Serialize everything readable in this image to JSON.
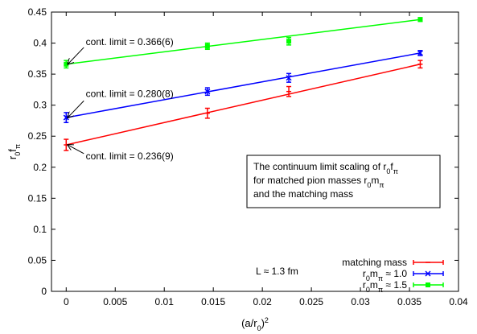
{
  "chart_data": {
    "type": "scatter",
    "xlabel_base": "(a/r",
    "xlabel_sub": "0",
    "xlabel_close": ")",
    "xlabel_sup": "2",
    "ylabel_base": "r",
    "ylabel_sub1": "0",
    "ylabel_mid": "f",
    "ylabel_sub2": "π",
    "xlim": [
      -0.0015,
      0.04
    ],
    "ylim": [
      0,
      0.45
    ],
    "x_ticks": [
      0,
      0.005,
      0.01,
      0.015,
      0.02,
      0.025,
      0.03,
      0.035,
      0.04
    ],
    "x_tick_labels": [
      "0",
      "0.005",
      "0.01",
      "0.015",
      "0.02",
      "0.025",
      "0.03",
      "0.035",
      "0.04"
    ],
    "y_ticks": [
      0,
      0.05,
      0.1,
      0.15,
      0.2,
      0.25,
      0.3,
      0.35,
      0.4,
      0.45
    ],
    "y_tick_labels": [
      "0",
      "0.05",
      "0.1",
      "0.15",
      "0.2",
      "0.25",
      "0.3",
      "0.35",
      "0.4",
      "0.45"
    ],
    "grid": false,
    "legend_position": "bottom-right",
    "series": [
      {
        "legend_base": "matching mass",
        "legend_sub": "",
        "legend_tail": "",
        "color": "#ff0000",
        "marker": "plus",
        "points": [
          {
            "x": 0,
            "y": 0.236,
            "err": 0.009
          },
          {
            "x": 0.0144,
            "y": 0.287,
            "err": 0.008
          },
          {
            "x": 0.0227,
            "y": 0.322,
            "err": 0.008
          },
          {
            "x": 0.0361,
            "y": 0.366,
            "err": 0.006
          }
        ],
        "fit": {
          "x0": 0,
          "y0": 0.236,
          "x1": 0.0361,
          "y1": 0.366
        }
      },
      {
        "legend_base": "r",
        "legend_sub": "0",
        "legend_tail": "m",
        "legend_sub2": "π",
        "legend_end": " ≈ 1.0",
        "color": "#0000ff",
        "marker": "cross",
        "points": [
          {
            "x": 0,
            "y": 0.28,
            "err": 0.008
          },
          {
            "x": 0.0144,
            "y": 0.322,
            "err": 0.006
          },
          {
            "x": 0.0227,
            "y": 0.344,
            "err": 0.007
          },
          {
            "x": 0.0361,
            "y": 0.384,
            "err": 0.004
          }
        ],
        "fit": {
          "x0": 0,
          "y0": 0.28,
          "x1": 0.0361,
          "y1": 0.384
        }
      },
      {
        "legend_base": "r",
        "legend_sub": "0",
        "legend_tail": "m",
        "legend_sub2": "π",
        "legend_end": " ≈ 1.5",
        "color": "#00ff00",
        "marker": "square",
        "points": [
          {
            "x": 0,
            "y": 0.366,
            "err": 0.006
          },
          {
            "x": 0.0144,
            "y": 0.395,
            "err": 0.005
          },
          {
            "x": 0.0227,
            "y": 0.403,
            "err": 0.006
          },
          {
            "x": 0.0361,
            "y": 0.438,
            "err": 0.003
          }
        ],
        "fit": {
          "x0": 0,
          "y0": 0.366,
          "x1": 0.0361,
          "y1": 0.438
        }
      }
    ],
    "annotations": [
      {
        "text": "cont. limit = 0.366(6)",
        "label_x": 0.002,
        "label_y": 0.397,
        "arrow_to_x": 0,
        "arrow_to_y": 0.366,
        "arrow_from_x": 0.0018,
        "arrow_from_y": 0.393
      },
      {
        "text": "cont. limit = 0.280(8)",
        "label_x": 0.002,
        "label_y": 0.313,
        "arrow_to_x": 0,
        "arrow_to_y": 0.28,
        "arrow_from_x": 0.0018,
        "arrow_from_y": 0.307
      },
      {
        "text": "cont. limit = 0.236(9)",
        "label_x": 0.002,
        "label_y": 0.213,
        "arrow_to_x": 0,
        "arrow_to_y": 0.236,
        "arrow_from_x": 0.0018,
        "arrow_from_y": 0.222
      }
    ],
    "info_box_lines": [
      {
        "pre": "The continuum limit scaling of r",
        "s1": "0",
        "mid": "f",
        "s2": "π",
        "post": ""
      },
      {
        "pre": "for matched pion masses r",
        "s1": "0",
        "mid": "m",
        "s2": "π",
        "post": ""
      },
      {
        "pre": "and the matching mass",
        "s1": "",
        "mid": "",
        "s2": "",
        "post": ""
      }
    ],
    "scale_note": "L ≈ 1.3 fm"
  }
}
